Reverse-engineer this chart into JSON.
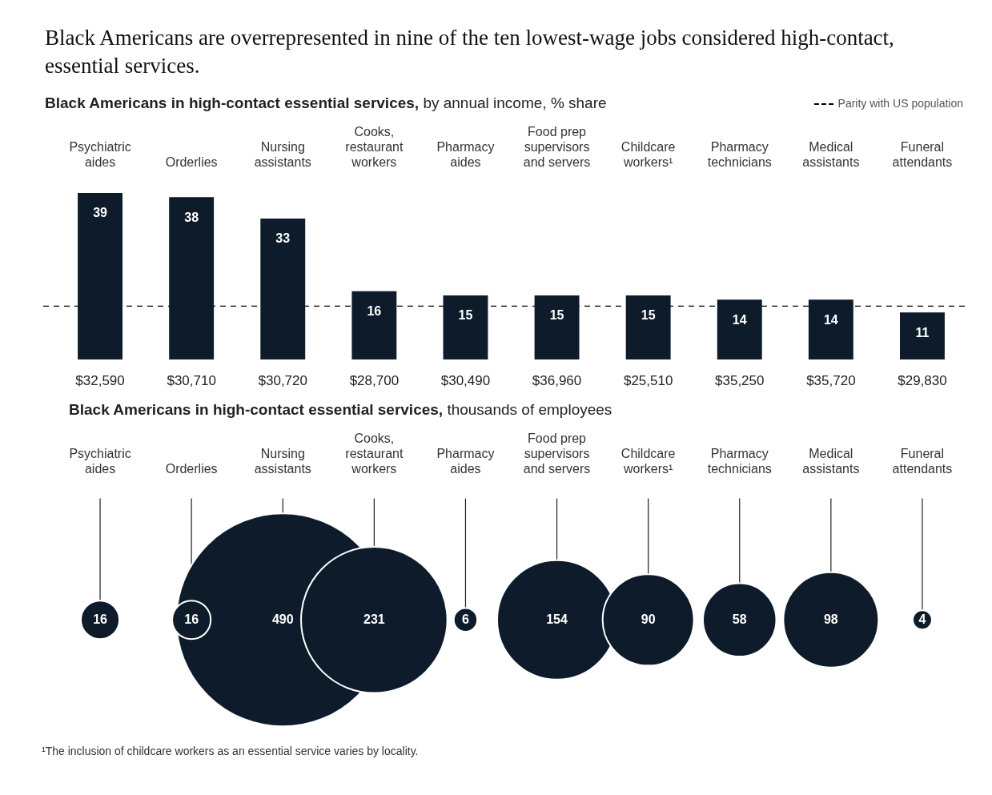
{
  "chart_data": [
    {
      "type": "bar",
      "title": "Black Americans are overrepresented in nine of the ten lowest-wage jobs considered high-contact, essential services.",
      "subtitle": "Black Americans in high-contact essential services, by annual income, % share",
      "categories": [
        "Psychiatric aides",
        "Orderlies",
        "Nursing assistants",
        "Cooks, restaurant workers",
        "Pharmacy aides",
        "Food prep supervisors and servers",
        "Childcare workers¹",
        "Pharmacy technicians",
        "Medical assistants",
        "Funeral attendants"
      ],
      "values": [
        39,
        38,
        33,
        16,
        15,
        15,
        15,
        14,
        14,
        11
      ],
      "color": "#0d1b2a",
      "data_labels": true,
      "tick_labels": "x",
      "ref_lines": [
        {
          "axis": "y",
          "value": 12.5,
          "label": "Parity with US population",
          "line_style": "dashed",
          "color": "#000000"
        }
      ],
      "annotations": [
        "$32,590",
        "$30,710",
        "$30,720",
        "$28,700",
        "$30,490",
        "$36,960",
        "$25,510",
        "$35,250",
        "$35,720",
        "$29,830"
      ]
    },
    {
      "type": "other",
      "title": "Black Americans in high-contact essential services, thousands of employees",
      "categories": [
        "Psychiatric aides",
        "Orderlies",
        "Nursing assistants",
        "Cooks, restaurant workers",
        "Pharmacy aides",
        "Food prep supervisors and servers",
        "Childcare workers¹",
        "Pharmacy technicians",
        "Medical assistants",
        "Funeral attendants"
      ],
      "values": [
        16,
        16,
        490,
        231,
        6,
        154,
        90,
        58,
        98,
        4
      ],
      "color": "#0d1b2a",
      "data_labels": true,
      "annotations": [
        "¹The inclusion of childcare workers as an essential service varies by locality."
      ]
    }
  ]
}
